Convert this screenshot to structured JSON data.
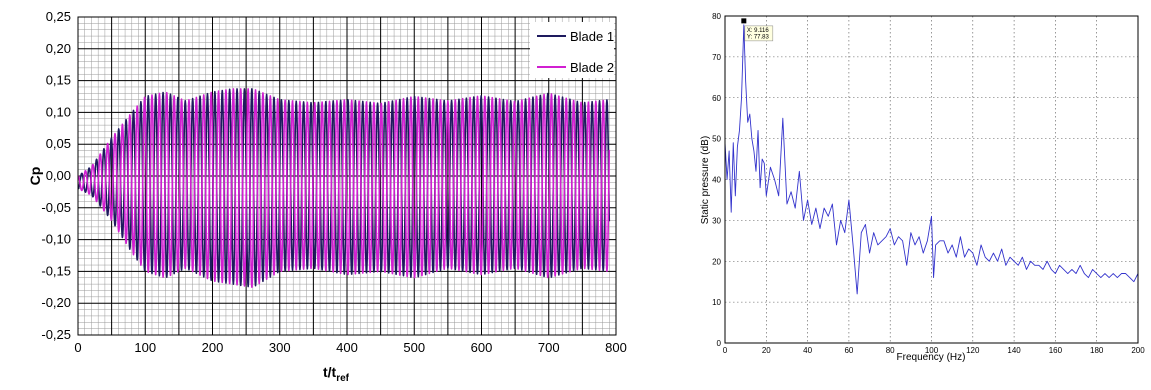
{
  "chart_data": [
    {
      "type": "line",
      "title": "",
      "xlabel": "t/t",
      "xlabel_subscript": "ref",
      "ylabel": "Cp",
      "xlim": [
        0,
        800
      ],
      "ylim": [
        -0.25,
        0.25
      ],
      "x_ticks": [
        "0",
        "100",
        "200",
        "300",
        "400",
        "500",
        "600",
        "700",
        "800"
      ],
      "y_ticks": [
        "0,25",
        "0,20",
        "0,15",
        "0,10",
        "0,05",
        "0,00",
        "-0,05",
        "-0,10",
        "-0,15",
        "-0,20",
        "-0,25"
      ],
      "grid": true,
      "legend_position": "top-right",
      "x_range": [
        0,
        790
      ],
      "oscillation_period": 11,
      "envelope": {
        "t": [
          0,
          20,
          50,
          80,
          100,
          130,
          160,
          200,
          230,
          260,
          300,
          350,
          400,
          450,
          500,
          550,
          600,
          650,
          700,
          750,
          790
        ],
        "upper": [
          0.0,
          0.015,
          0.06,
          0.1,
          0.125,
          0.132,
          0.118,
          0.132,
          0.137,
          0.137,
          0.12,
          0.115,
          0.12,
          0.114,
          0.125,
          0.118,
          0.126,
          0.117,
          0.13,
          0.115,
          0.12
        ],
        "lower": [
          -0.02,
          -0.03,
          -0.07,
          -0.12,
          -0.15,
          -0.16,
          -0.145,
          -0.165,
          -0.17,
          -0.175,
          -0.15,
          -0.145,
          -0.155,
          -0.15,
          -0.16,
          -0.145,
          -0.155,
          -0.145,
          -0.16,
          -0.145,
          -0.15
        ]
      },
      "series": [
        {
          "name": "Blade 1",
          "color": "#1e1a5e",
          "phase_offset": 0.0
        },
        {
          "name": "Blade 2",
          "color": "#d11fd1",
          "phase_offset": 0.5
        }
      ]
    },
    {
      "type": "line",
      "title": "",
      "xlabel": "Frequency (Hz)",
      "ylabel": "Static pressure (dB)",
      "xlim": [
        0,
        200
      ],
      "ylim": [
        0,
        80
      ],
      "x_ticks": [
        "0",
        "20",
        "40",
        "60",
        "80",
        "100",
        "120",
        "140",
        "160",
        "180",
        "200"
      ],
      "y_ticks": [
        "80",
        "70",
        "60",
        "50",
        "40",
        "30",
        "20",
        "10",
        "0"
      ],
      "grid": true,
      "series": [
        {
          "color": "#3333cc",
          "x": [
            0,
            1,
            2,
            3,
            4,
            5,
            6,
            7,
            8,
            9.116,
            10,
            11,
            12,
            13,
            14,
            15,
            16,
            17,
            18,
            19,
            20,
            22,
            24,
            26,
            28,
            30,
            32,
            34,
            36,
            38,
            40,
            42,
            44,
            46,
            48,
            50,
            52,
            54,
            56,
            58,
            60,
            62,
            63,
            64,
            66,
            68,
            70,
            72,
            74,
            76,
            78,
            80,
            82,
            84,
            86,
            88,
            90,
            92,
            94,
            96,
            98,
            100,
            101,
            102,
            104,
            106,
            108,
            110,
            112,
            114,
            116,
            118,
            120,
            122,
            124,
            126,
            128,
            130,
            132,
            134,
            136,
            138,
            140,
            142,
            144,
            146,
            148,
            150,
            152,
            154,
            156,
            158,
            160,
            162,
            164,
            166,
            168,
            170,
            172,
            174,
            176,
            178,
            180,
            182,
            184,
            186,
            188,
            190,
            192,
            194,
            196,
            198,
            200
          ],
          "y": [
            49,
            40,
            47,
            32,
            49,
            36,
            48,
            52,
            60,
            77.83,
            64,
            54,
            56,
            50,
            47,
            42,
            52,
            38,
            45,
            44,
            36,
            43,
            40,
            36,
            55,
            34,
            37,
            33,
            42,
            30,
            35,
            29,
            33,
            28,
            33,
            31,
            34,
            24,
            30,
            27,
            35,
            24,
            18,
            12,
            27,
            29,
            22,
            27,
            24,
            25,
            26,
            28,
            24,
            26,
            25,
            19,
            27,
            24,
            26,
            22,
            25,
            31,
            16,
            24,
            25,
            25,
            22,
            24,
            21,
            26,
            21,
            23,
            22,
            19,
            24,
            21,
            20,
            22,
            20,
            23,
            19,
            21,
            20,
            19,
            21,
            18,
            20,
            19,
            19,
            18,
            20,
            18,
            17,
            19,
            18,
            17,
            18,
            17,
            19,
            17,
            16,
            18,
            17,
            16,
            17,
            16,
            17,
            16,
            17,
            17,
            16,
            15,
            17
          ]
        }
      ],
      "datatip": {
        "x_text": "X: 9.116",
        "y_text": "Y: 77.83",
        "x": 9.116,
        "y": 77.83
      }
    }
  ]
}
